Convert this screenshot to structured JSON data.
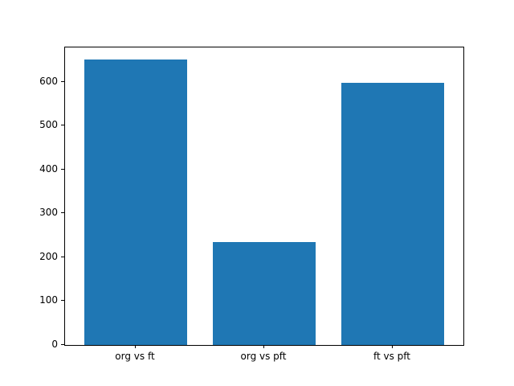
{
  "chart_data": {
    "type": "bar",
    "title": "",
    "xlabel": "",
    "ylabel": "",
    "categories": [
      "org vs ft",
      "org vs pft",
      "ft vs pft"
    ],
    "values": [
      650,
      235,
      598
    ],
    "bar_color": "#1f77b4",
    "yticks": [
      0,
      100,
      200,
      300,
      400,
      500,
      600
    ],
    "ylim": [
      0,
      678
    ],
    "xlim_units": 3.1,
    "first_bar_center_unit": 0.55,
    "bar_width_units": 0.8,
    "grid": false,
    "legend": null,
    "background_color": "#ffffff",
    "spine_color": "#000000"
  }
}
